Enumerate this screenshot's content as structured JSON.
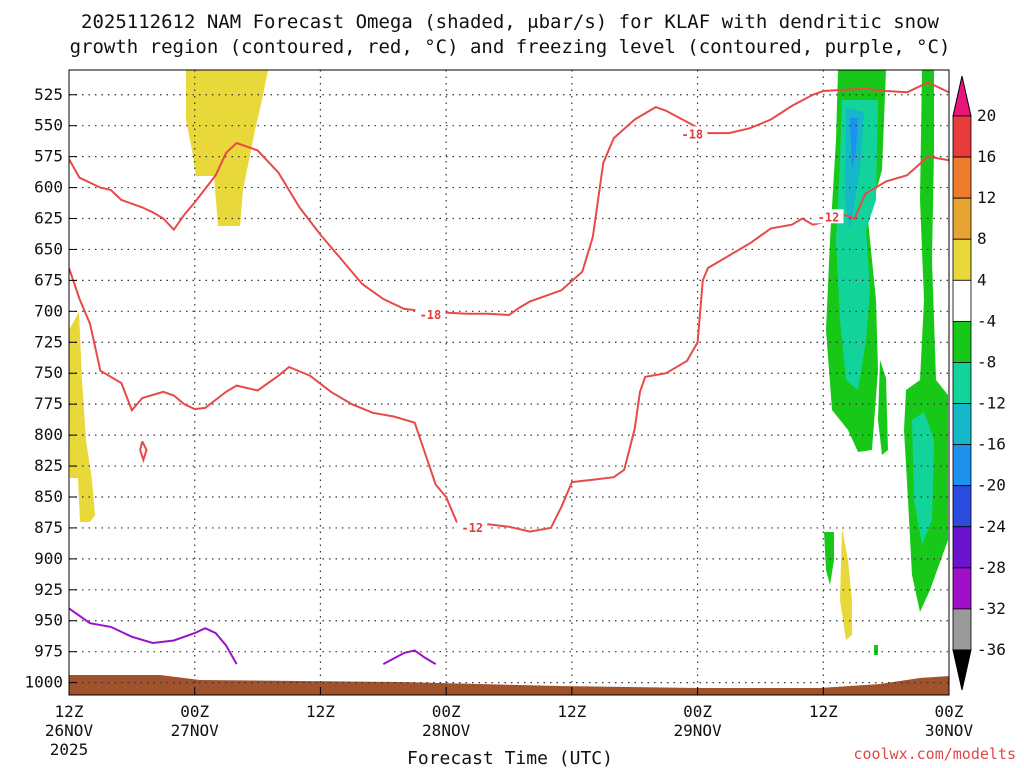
{
  "title_line1": "2025112612 NAM Forecast Omega (shaded, μbar/s) for KLAF with dendritic snow",
  "title_line2": "growth region (contoured, red, °C) and freezing level (contoured, purple, °C)",
  "credit": "coolwx.com/modelts",
  "chart_data": {
    "type": "time-height cross-section",
    "xlabel": "Forecast Time (UTC)",
    "x_ticks": [
      {
        "label": "12Z",
        "sub": "26NOV",
        "year": "2025",
        "hours": 0
      },
      {
        "label": "00Z",
        "sub": "27NOV",
        "hours": 12
      },
      {
        "label": "12Z",
        "sub": "",
        "hours": 24
      },
      {
        "label": "00Z",
        "sub": "28NOV",
        "hours": 36
      },
      {
        "label": "12Z",
        "sub": "",
        "hours": 48
      },
      {
        "label": "00Z",
        "sub": "29NOV",
        "hours": 60
      },
      {
        "label": "12Z",
        "sub": "",
        "hours": 72
      },
      {
        "label": "00Z",
        "sub": "30NOV",
        "hours": 84
      }
    ],
    "xlim_hours": [
      0,
      84
    ],
    "y_ticks": [
      525,
      550,
      575,
      600,
      625,
      650,
      675,
      700,
      725,
      750,
      775,
      800,
      825,
      850,
      875,
      900,
      925,
      950,
      975,
      1000
    ],
    "ylim": [
      505,
      1010
    ],
    "grid": true,
    "colorbar": {
      "ticks": [
        "20",
        "16",
        "12",
        "8",
        "4",
        "-4",
        "-8",
        "-12",
        "-16",
        "-20",
        "-24",
        "-28",
        "-32",
        "-36"
      ],
      "colors": [
        "#e8157a",
        "#e83c3c",
        "#ee7a2c",
        "#e8a430",
        "#e8d83a",
        "#ffffff",
        "#18c818",
        "#12d49a",
        "#14b8c8",
        "#1e90ee",
        "#2a4ce0",
        "#6a14d0",
        "#a010c8",
        "#9a9a9a",
        "#000000"
      ]
    },
    "contour_labels": [
      "-18",
      "-18",
      "-12",
      "-12"
    ],
    "minus18_upper": [
      [
        0,
        577
      ],
      [
        1,
        592
      ],
      [
        3,
        600
      ],
      [
        4,
        602
      ],
      [
        5,
        610
      ],
      [
        7,
        616
      ],
      [
        8,
        620
      ],
      [
        9,
        625
      ],
      [
        10,
        634
      ],
      [
        11,
        622
      ],
      [
        12,
        612
      ],
      [
        14,
        590
      ],
      [
        15,
        572
      ],
      [
        16,
        564
      ],
      [
        18,
        570
      ],
      [
        20,
        588
      ],
      [
        22,
        616
      ],
      [
        24,
        638
      ],
      [
        26,
        658
      ],
      [
        28,
        678
      ],
      [
        30,
        690
      ],
      [
        32,
        698
      ],
      [
        34,
        700
      ],
      [
        36,
        701
      ],
      [
        38,
        702
      ],
      [
        40,
        702
      ],
      [
        42,
        703
      ],
      [
        43,
        697
      ],
      [
        44,
        692
      ],
      [
        47,
        683
      ],
      [
        49,
        668
      ],
      [
        50,
        640
      ],
      [
        51,
        580
      ],
      [
        52,
        560
      ],
      [
        54,
        545
      ],
      [
        56,
        535
      ],
      [
        57,
        538
      ],
      [
        59,
        547
      ],
      [
        61,
        556
      ],
      [
        63,
        556
      ],
      [
        65,
        552
      ],
      [
        67,
        545
      ],
      [
        69,
        534
      ],
      [
        71,
        525
      ],
      [
        72,
        522
      ],
      [
        74,
        521
      ],
      [
        76,
        520
      ],
      [
        78,
        522
      ],
      [
        80,
        523
      ],
      [
        81,
        519
      ],
      [
        82,
        515
      ],
      [
        84,
        523
      ]
    ],
    "minus12_lower": [
      [
        0,
        665
      ],
      [
        1,
        690
      ],
      [
        2,
        710
      ],
      [
        3,
        748
      ],
      [
        5,
        758
      ],
      [
        6,
        780
      ],
      [
        7,
        770
      ],
      [
        9,
        765
      ],
      [
        10,
        768
      ],
      [
        11,
        775
      ],
      [
        12,
        779
      ],
      [
        13,
        778
      ],
      [
        15,
        765
      ],
      [
        16,
        760
      ],
      [
        18,
        764
      ],
      [
        20,
        752
      ],
      [
        21,
        745
      ],
      [
        23,
        752
      ],
      [
        25,
        765
      ],
      [
        27,
        775
      ],
      [
        29,
        782
      ],
      [
        31,
        785
      ],
      [
        33,
        790
      ],
      [
        34,
        815
      ],
      [
        35,
        840
      ],
      [
        36,
        850
      ],
      [
        37,
        870
      ],
      [
        38,
        873
      ],
      [
        40,
        872
      ],
      [
        42,
        874
      ],
      [
        44,
        878
      ],
      [
        46,
        875
      ],
      [
        47,
        858
      ],
      [
        48,
        838
      ],
      [
        50,
        836
      ],
      [
        52,
        834
      ],
      [
        53,
        828
      ],
      [
        54,
        795
      ],
      [
        54.5,
        765
      ],
      [
        55,
        753
      ],
      [
        57,
        750
      ],
      [
        59,
        740
      ],
      [
        60,
        725
      ],
      [
        60.5,
        675
      ],
      [
        61,
        665
      ],
      [
        63,
        655
      ],
      [
        65,
        645
      ],
      [
        67,
        633
      ],
      [
        69,
        630
      ],
      [
        70,
        625
      ],
      [
        71,
        630
      ],
      [
        72,
        628
      ],
      [
        73,
        625
      ],
      [
        74,
        622
      ],
      [
        75,
        625
      ],
      [
        76,
        605
      ],
      [
        77,
        600
      ],
      [
        78,
        595
      ],
      [
        80,
        590
      ],
      [
        82,
        575
      ],
      [
        84,
        578
      ]
    ],
    "freezing_level": [
      [
        0,
        940
      ],
      [
        2,
        952
      ],
      [
        4,
        955
      ],
      [
        6,
        963
      ],
      [
        8,
        968
      ],
      [
        10,
        966
      ],
      [
        11,
        963
      ],
      [
        12,
        960
      ],
      [
        13,
        956
      ],
      [
        14,
        960
      ],
      [
        15,
        970
      ],
      [
        16,
        985
      ]
    ],
    "freezing_level_2": [
      [
        30,
        985
      ],
      [
        32,
        976
      ],
      [
        33,
        974
      ],
      [
        34,
        980
      ],
      [
        35,
        985
      ]
    ],
    "small_loop": [
      [
        7,
        805
      ],
      [
        7.4,
        812
      ],
      [
        7.1,
        820
      ],
      [
        6.8,
        812
      ],
      [
        7,
        805
      ]
    ]
  }
}
